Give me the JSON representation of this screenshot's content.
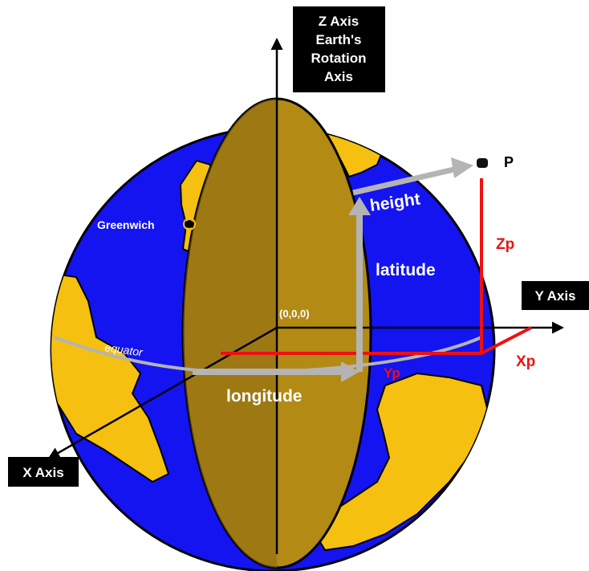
{
  "labels": {
    "z_axis": [
      "Z Axis",
      "Earth's",
      "Rotation",
      "Axis"
    ],
    "y_axis": "Y Axis",
    "x_axis": "X Axis",
    "point": "P",
    "height": "height",
    "latitude": "latitude",
    "longitude": "longitude",
    "origin": "(0,0,0)",
    "greenwich": "Greenwich",
    "equator": "equator",
    "zp": "Zp",
    "yp": "Yp",
    "xp": "Xp"
  },
  "colors": {
    "ocean": "#1414f0",
    "land": "#f5c00f",
    "meridian_disc": "#b38a14",
    "meridian_disc_dark": "#8c6b12",
    "coordinate_lines": "#ee1111",
    "arrows": "#b4b4b4",
    "axis_lines": "#000000",
    "label_box": "#000000"
  }
}
